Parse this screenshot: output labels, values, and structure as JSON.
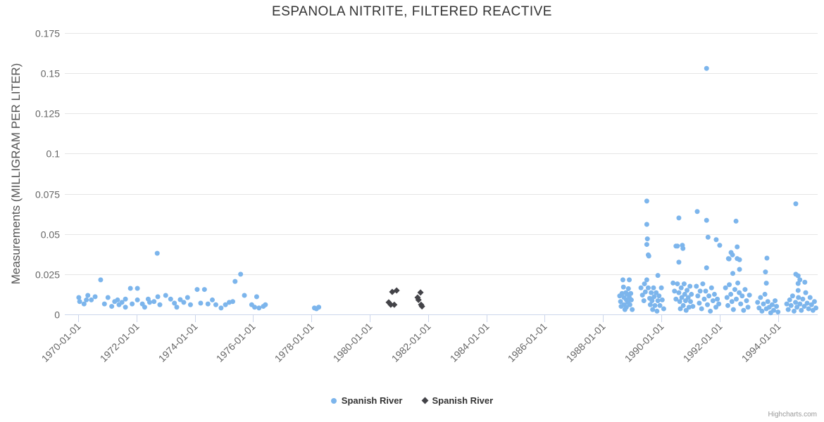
{
  "chart_data": {
    "type": "scatter",
    "title": "ESPANOLA NITRITE, FILTERED REACTIVE",
    "xlabel": "",
    "ylabel": "Measurements (MILLIGRAM PER LITER)",
    "ylim": [
      0,
      0.175
    ],
    "yticks": [
      0,
      0.025,
      0.05,
      0.075,
      0.1,
      0.125,
      0.15,
      0.175
    ],
    "xlim": [
      1969.54,
      1995.36
    ],
    "xticks": [
      {
        "value": 1970,
        "label": "1970-01-01"
      },
      {
        "value": 1972,
        "label": "1972-01-01"
      },
      {
        "value": 1974,
        "label": "1974-01-01"
      },
      {
        "value": 1976,
        "label": "1976-01-01"
      },
      {
        "value": 1978,
        "label": "1978-01-01"
      },
      {
        "value": 1980,
        "label": "1980-01-01"
      },
      {
        "value": 1982,
        "label": "1982-01-01"
      },
      {
        "value": 1984,
        "label": "1984-01-01"
      },
      {
        "value": 1986,
        "label": "1986-01-01"
      },
      {
        "value": 1988,
        "label": "1988-01-01"
      },
      {
        "value": 1990,
        "label": "1990-01-01"
      },
      {
        "value": 1992,
        "label": "1992-01-01"
      },
      {
        "value": 1994,
        "label": "1994-01-01"
      }
    ],
    "grid": "horizontal",
    "legend_position": "bottom-center",
    "credits": "Highcharts.com",
    "colors": {
      "series_blue": "#7cb5ec",
      "series_dark": "#434348",
      "grid": "#e6e6e6",
      "axis": "#ccd6eb",
      "tick_label": "#666666",
      "title": "#333333"
    },
    "series": [
      {
        "name": "Spanish River",
        "marker": "circle",
        "color": "#7cb5ec",
        "points": [
          [
            1970.02,
            0.0105
          ],
          [
            1970.05,
            0.008
          ],
          [
            1970.2,
            0.0065
          ],
          [
            1970.28,
            0.009
          ],
          [
            1970.33,
            0.0118
          ],
          [
            1970.45,
            0.009
          ],
          [
            1970.58,
            0.011
          ],
          [
            1970.77,
            0.0215
          ],
          [
            1970.9,
            0.0065
          ],
          [
            1971.02,
            0.0105
          ],
          [
            1971.15,
            0.005
          ],
          [
            1971.25,
            0.008
          ],
          [
            1971.35,
            0.009
          ],
          [
            1971.4,
            0.006
          ],
          [
            1971.5,
            0.0075
          ],
          [
            1971.62,
            0.0095
          ],
          [
            1971.62,
            0.0045
          ],
          [
            1971.79,
            0.0162
          ],
          [
            1971.85,
            0.0065
          ],
          [
            1972.03,
            0.0162
          ],
          [
            1972.03,
            0.009
          ],
          [
            1972.2,
            0.0065
          ],
          [
            1972.28,
            0.0045
          ],
          [
            1972.4,
            0.0095
          ],
          [
            1972.45,
            0.0075
          ],
          [
            1972.6,
            0.008
          ],
          [
            1972.71,
            0.038
          ],
          [
            1972.73,
            0.011
          ],
          [
            1972.8,
            0.006
          ],
          [
            1973.0,
            0.0118
          ],
          [
            1973.17,
            0.0095
          ],
          [
            1973.3,
            0.007
          ],
          [
            1973.38,
            0.0045
          ],
          [
            1973.5,
            0.0092
          ],
          [
            1973.62,
            0.0075
          ],
          [
            1973.75,
            0.0105
          ],
          [
            1973.85,
            0.006
          ],
          [
            1974.08,
            0.0155
          ],
          [
            1974.33,
            0.0155
          ],
          [
            1974.2,
            0.007
          ],
          [
            1974.45,
            0.0065
          ],
          [
            1974.6,
            0.009
          ],
          [
            1974.72,
            0.006
          ],
          [
            1974.9,
            0.004
          ],
          [
            1975.05,
            0.006
          ],
          [
            1975.18,
            0.0075
          ],
          [
            1975.3,
            0.008
          ],
          [
            1975.38,
            0.0205
          ],
          [
            1975.57,
            0.025
          ],
          [
            1975.7,
            0.0118
          ],
          [
            1975.95,
            0.006
          ],
          [
            1976.05,
            0.0045
          ],
          [
            1976.12,
            0.011
          ],
          [
            1976.2,
            0.004
          ],
          [
            1976.35,
            0.005
          ],
          [
            1976.42,
            0.006
          ],
          [
            1978.1,
            0.004
          ],
          [
            1978.17,
            0.0035
          ],
          [
            1978.25,
            0.0045
          ],
          [
            1988.57,
            0.0115
          ],
          [
            1988.6,
            0.008
          ],
          [
            1988.62,
            0.005
          ],
          [
            1988.65,
            0.013
          ],
          [
            1988.68,
            0.0215
          ],
          [
            1988.7,
            0.017
          ],
          [
            1988.72,
            0.0105
          ],
          [
            1988.72,
            0.006
          ],
          [
            1988.75,
            0.003
          ],
          [
            1988.78,
            0.0135
          ],
          [
            1988.8,
            0.009
          ],
          [
            1988.8,
            0.0045
          ],
          [
            1988.83,
            0.0125
          ],
          [
            1988.85,
            0.0075
          ],
          [
            1988.87,
            0.016
          ],
          [
            1988.9,
            0.0105
          ],
          [
            1988.9,
            0.0215
          ],
          [
            1988.92,
            0.006
          ],
          [
            1988.95,
            0.013
          ],
          [
            1988.97,
            0.009
          ],
          [
            1989.0,
            0.003
          ],
          [
            1989.3,
            0.0165
          ],
          [
            1989.35,
            0.012
          ],
          [
            1989.4,
            0.0085
          ],
          [
            1989.42,
            0.019
          ],
          [
            1989.45,
            0.014
          ],
          [
            1989.5,
            0.0705
          ],
          [
            1989.5,
            0.056
          ],
          [
            1989.5,
            0.0435
          ],
          [
            1989.52,
            0.047
          ],
          [
            1989.55,
            0.037
          ],
          [
            1989.57,
            0.0363
          ],
          [
            1989.5,
            0.0215
          ],
          [
            1989.55,
            0.0165
          ],
          [
            1989.88,
            0.0242
          ],
          [
            1989.6,
            0.01
          ],
          [
            1989.62,
            0.006
          ],
          [
            1989.65,
            0.0135
          ],
          [
            1989.68,
            0.0085
          ],
          [
            1989.7,
            0.003
          ],
          [
            1989.73,
            0.0165
          ],
          [
            1989.75,
            0.011
          ],
          [
            1989.78,
            0.0055
          ],
          [
            1989.82,
            0.0135
          ],
          [
            1989.85,
            0.002
          ],
          [
            1989.88,
            0.0085
          ],
          [
            1989.92,
            0.0115
          ],
          [
            1989.95,
            0.0055
          ],
          [
            1990.0,
            0.0165
          ],
          [
            1990.03,
            0.009
          ],
          [
            1990.08,
            0.0035
          ],
          [
            1990.4,
            0.0195
          ],
          [
            1990.45,
            0.0145
          ],
          [
            1990.5,
            0.0425
          ],
          [
            1990.55,
            0.0425
          ],
          [
            1990.5,
            0.0095
          ],
          [
            1990.55,
            0.019
          ],
          [
            1990.6,
            0.06
          ],
          [
            1990.6,
            0.0325
          ],
          [
            1990.6,
            0.0135
          ],
          [
            1990.63,
            0.008
          ],
          [
            1990.65,
            0.0035
          ],
          [
            1990.68,
            0.0165
          ],
          [
            1990.7,
            0.0105
          ],
          [
            1990.72,
            0.043
          ],
          [
            1990.74,
            0.041
          ],
          [
            1990.75,
            0.0055
          ],
          [
            1990.78,
            0.019
          ],
          [
            1990.8,
            0.0125
          ],
          [
            1990.83,
            0.0085
          ],
          [
            1990.85,
            0.0025
          ],
          [
            1990.88,
            0.015
          ],
          [
            1990.92,
            0.0105
          ],
          [
            1990.95,
            0.0045
          ],
          [
            1990.98,
            0.0175
          ],
          [
            1991.0,
            0.008
          ],
          [
            1991.03,
            0.0125
          ],
          [
            1991.08,
            0.005
          ],
          [
            1991.23,
            0.064
          ],
          [
            1991.55,
            0.153
          ],
          [
            1991.55,
            0.0585
          ],
          [
            1991.6,
            0.048
          ],
          [
            1991.88,
            0.0465
          ],
          [
            1992.0,
            0.043
          ],
          [
            1991.55,
            0.029
          ],
          [
            1991.2,
            0.0175
          ],
          [
            1991.25,
            0.0115
          ],
          [
            1991.3,
            0.007
          ],
          [
            1991.33,
            0.0145
          ],
          [
            1991.38,
            0.0035
          ],
          [
            1991.42,
            0.019
          ],
          [
            1991.47,
            0.0095
          ],
          [
            1991.52,
            0.0145
          ],
          [
            1991.58,
            0.006
          ],
          [
            1991.63,
            0.0115
          ],
          [
            1991.68,
            0.002
          ],
          [
            1991.72,
            0.0165
          ],
          [
            1991.77,
            0.0085
          ],
          [
            1991.82,
            0.0125
          ],
          [
            1991.87,
            0.0045
          ],
          [
            1991.92,
            0.0095
          ],
          [
            1991.97,
            0.0065
          ],
          [
            1992.32,
            0.0345
          ],
          [
            1992.39,
            0.0385
          ],
          [
            1992.44,
            0.037
          ],
          [
            1992.3,
            0.0347
          ],
          [
            1992.56,
            0.058
          ],
          [
            1992.6,
            0.042
          ],
          [
            1992.6,
            0.0347
          ],
          [
            1992.68,
            0.034
          ],
          [
            1992.68,
            0.028
          ],
          [
            1992.45,
            0.0255
          ],
          [
            1992.2,
            0.0165
          ],
          [
            1992.25,
            0.0105
          ],
          [
            1992.28,
            0.0055
          ],
          [
            1992.33,
            0.0185
          ],
          [
            1992.38,
            0.0125
          ],
          [
            1992.42,
            0.008
          ],
          [
            1992.47,
            0.003
          ],
          [
            1992.52,
            0.0155
          ],
          [
            1992.57,
            0.0095
          ],
          [
            1992.62,
            0.0195
          ],
          [
            1992.67,
            0.0135
          ],
          [
            1992.72,
            0.0065
          ],
          [
            1992.77,
            0.0115
          ],
          [
            1992.82,
            0.0025
          ],
          [
            1992.87,
            0.0155
          ],
          [
            1992.92,
            0.0085
          ],
          [
            1992.97,
            0.0045
          ],
          [
            1993.02,
            0.012
          ],
          [
            1993.57,
            0.0264
          ],
          [
            1993.62,
            0.035
          ],
          [
            1993.6,
            0.0194
          ],
          [
            1993.3,
            0.0075
          ],
          [
            1993.35,
            0.004
          ],
          [
            1993.4,
            0.0105
          ],
          [
            1993.45,
            0.002
          ],
          [
            1993.5,
            0.0065
          ],
          [
            1993.55,
            0.0125
          ],
          [
            1993.6,
            0.0035
          ],
          [
            1993.65,
            0.008
          ],
          [
            1993.7,
            0.0045
          ],
          [
            1993.75,
            0.001
          ],
          [
            1993.8,
            0.006
          ],
          [
            1993.85,
            0.0025
          ],
          [
            1993.9,
            0.0085
          ],
          [
            1993.95,
            0.005
          ],
          [
            1994.0,
            0.0015
          ],
          [
            1994.61,
            0.0688
          ],
          [
            1994.61,
            0.025
          ],
          [
            1994.69,
            0.024
          ],
          [
            1994.75,
            0.0215
          ],
          [
            1994.92,
            0.02
          ],
          [
            1994.69,
            0.0192
          ],
          [
            1994.69,
            0.0149
          ],
          [
            1994.3,
            0.0065
          ],
          [
            1994.35,
            0.003
          ],
          [
            1994.4,
            0.009
          ],
          [
            1994.45,
            0.0055
          ],
          [
            1994.5,
            0.0115
          ],
          [
            1994.55,
            0.002
          ],
          [
            1994.6,
            0.0075
          ],
          [
            1994.65,
            0.0045
          ],
          [
            1994.7,
            0.0105
          ],
          [
            1994.75,
            0.0065
          ],
          [
            1994.8,
            0.0025
          ],
          [
            1994.85,
            0.0095
          ],
          [
            1994.9,
            0.005
          ],
          [
            1994.95,
            0.0135
          ],
          [
            1995.0,
            0.007
          ],
          [
            1995.05,
            0.0035
          ],
          [
            1995.1,
            0.0105
          ],
          [
            1995.15,
            0.006
          ],
          [
            1995.2,
            0.0025
          ],
          [
            1995.25,
            0.008
          ],
          [
            1995.3,
            0.004
          ]
        ]
      },
      {
        "name": "Spanish River",
        "marker": "diamond",
        "color": "#434348",
        "points": [
          [
            1980.65,
            0.0075
          ],
          [
            1980.72,
            0.006
          ],
          [
            1980.84,
            0.006
          ],
          [
            1980.77,
            0.014
          ],
          [
            1980.92,
            0.0149
          ],
          [
            1981.64,
            0.0105
          ],
          [
            1981.67,
            0.009
          ],
          [
            1981.74,
            0.0136
          ],
          [
            1981.76,
            0.006
          ],
          [
            1981.79,
            0.005
          ]
        ]
      }
    ]
  }
}
